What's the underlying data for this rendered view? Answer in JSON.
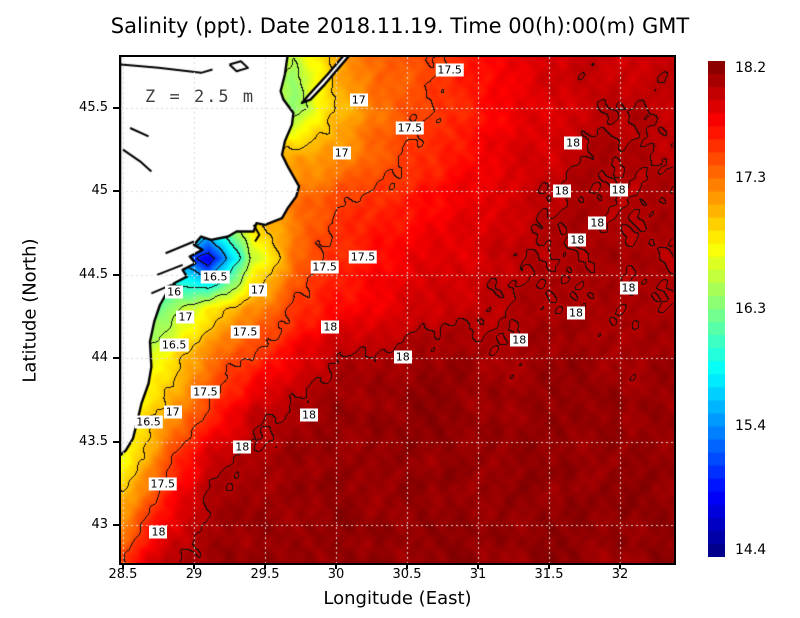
{
  "title": "Salinity (ppt). Date 2018.11.19. Time 00(h):00(m) GMT",
  "annotation": "Z = 2.5 m",
  "x_axis": {
    "label": "Longitude (East)",
    "ticks": [
      28.5,
      29,
      29.5,
      30,
      30.5,
      31,
      31.5,
      32
    ],
    "tick_labels": [
      "28.5",
      "29",
      "29.5",
      "30",
      "30.5",
      "31",
      "31.5",
      "32"
    ]
  },
  "y_axis": {
    "label": "Latitude (North)",
    "ticks": [
      45.5,
      45,
      44.5,
      44,
      43.5,
      43
    ],
    "tick_labels": [
      "45.5",
      "45",
      "44.5",
      "44",
      "43.5",
      "43"
    ]
  },
  "colorbar": {
    "min": 14.4,
    "max": 18.2,
    "ticks": [
      18.2,
      17.3,
      16.3,
      15.4,
      14.4
    ],
    "tick_labels": [
      "18.2",
      "17.3",
      "16.3",
      "15.4",
      "14.4"
    ],
    "steps": 38,
    "colormap": "jet"
  },
  "chart_data": {
    "type": "heatmap",
    "quantity": "salinity",
    "units": "ppt",
    "lon_range": [
      28.486,
      32.38
    ],
    "lat_range": [
      42.775,
      45.805
    ],
    "grid_lons": [
      28.5,
      28.8,
      29.1,
      29.4,
      29.7,
      30.0,
      30.3,
      30.6,
      30.9,
      31.2,
      31.5,
      31.8,
      32.1,
      32.4
    ],
    "grid_lats": [
      45.8,
      45.5,
      45.2,
      44.9,
      44.6,
      44.3,
      44.0,
      43.7,
      43.4,
      43.1,
      42.8
    ],
    "salinity": [
      [
        17.0,
        17.0,
        17.0,
        16.9,
        16.5,
        17.1,
        17.35,
        17.45,
        17.6,
        17.8,
        17.9,
        17.95,
        17.9,
        17.95
      ],
      [
        17.0,
        17.0,
        17.0,
        16.9,
        16.3,
        17.0,
        17.3,
        17.45,
        17.6,
        17.75,
        17.85,
        17.95,
        18.0,
        17.95
      ],
      [
        17.0,
        17.0,
        17.0,
        17.0,
        17.1,
        17.2,
        17.4,
        17.55,
        17.7,
        17.85,
        17.9,
        18.05,
        18.0,
        18.0
      ],
      [
        16.6,
        16.6,
        16.7,
        17.0,
        17.3,
        17.5,
        17.6,
        17.7,
        17.8,
        17.9,
        18.0,
        18.05,
        18.0,
        18.05
      ],
      [
        16.2,
        15.9,
        14.7,
        16.5,
        17.3,
        17.55,
        17.7,
        17.8,
        17.85,
        17.95,
        18.0,
        18.05,
        18.05,
        18.0
      ],
      [
        16.0,
        16.3,
        16.8,
        17.2,
        17.5,
        17.7,
        17.8,
        17.9,
        17.95,
        18.0,
        18.05,
        18.05,
        18.0,
        18.05
      ],
      [
        16.4,
        16.8,
        17.3,
        17.5,
        17.8,
        18.0,
        18.05,
        18.1,
        18.1,
        18.05,
        18.1,
        18.1,
        18.05,
        18.1
      ],
      [
        16.6,
        17.1,
        17.5,
        17.9,
        18.05,
        18.1,
        18.1,
        18.15,
        18.1,
        18.1,
        18.1,
        18.15,
        18.1,
        18.1
      ],
      [
        16.7,
        17.4,
        17.9,
        18.05,
        18.1,
        18.1,
        18.15,
        18.1,
        18.15,
        18.1,
        18.15,
        18.1,
        18.1,
        18.15
      ],
      [
        17.1,
        17.7,
        18.05,
        18.1,
        18.1,
        18.15,
        18.1,
        18.15,
        18.1,
        18.15,
        18.1,
        18.15,
        18.15,
        18.1
      ],
      [
        17.5,
        18.0,
        18.1,
        18.1,
        18.15,
        18.1,
        18.15,
        18.1,
        18.15,
        18.1,
        18.15,
        18.1,
        18.1,
        18.15
      ]
    ],
    "contour_levels": [
      15.0,
      15.5,
      16.0,
      16.5,
      17.0,
      17.5,
      18.0
    ],
    "contour_labels": [
      {
        "v": "17.5",
        "lon": 30.8,
        "lat": 45.73
      },
      {
        "v": "17",
        "lon": 30.16,
        "lat": 45.55
      },
      {
        "v": "17.5",
        "lon": 30.52,
        "lat": 45.38
      },
      {
        "v": "17",
        "lon": 30.04,
        "lat": 45.23
      },
      {
        "v": "18",
        "lon": 31.67,
        "lat": 45.29
      },
      {
        "v": "18",
        "lon": 31.59,
        "lat": 45.0
      },
      {
        "v": "18",
        "lon": 31.99,
        "lat": 45.01
      },
      {
        "v": "18",
        "lon": 31.84,
        "lat": 44.81
      },
      {
        "v": "18",
        "lon": 31.7,
        "lat": 44.71
      },
      {
        "v": "17.5",
        "lon": 30.19,
        "lat": 44.61
      },
      {
        "v": "17.5",
        "lon": 29.92,
        "lat": 44.55
      },
      {
        "v": "16.5",
        "lon": 29.15,
        "lat": 44.49
      },
      {
        "v": "17",
        "lon": 29.45,
        "lat": 44.41
      },
      {
        "v": "16",
        "lon": 28.86,
        "lat": 44.4
      },
      {
        "v": "17",
        "lon": 28.94,
        "lat": 44.25
      },
      {
        "v": "17.5",
        "lon": 29.36,
        "lat": 44.16
      },
      {
        "v": "16.5",
        "lon": 28.86,
        "lat": 44.08
      },
      {
        "v": "18",
        "lon": 29.96,
        "lat": 44.19
      },
      {
        "v": "16.5",
        "lon": 28.68,
        "lat": 43.62
      },
      {
        "v": "17.5",
        "lon": 29.08,
        "lat": 43.8
      },
      {
        "v": "17",
        "lon": 28.85,
        "lat": 43.68
      },
      {
        "v": "18",
        "lon": 29.81,
        "lat": 43.66
      },
      {
        "v": "18",
        "lon": 30.47,
        "lat": 44.01
      },
      {
        "v": "18",
        "lon": 31.29,
        "lat": 44.11
      },
      {
        "v": "18",
        "lon": 31.69,
        "lat": 44.27
      },
      {
        "v": "18",
        "lon": 32.06,
        "lat": 44.42
      },
      {
        "v": "18",
        "lon": 29.34,
        "lat": 43.47
      },
      {
        "v": "17.5",
        "lon": 28.78,
        "lat": 43.25
      },
      {
        "v": "18",
        "lon": 28.75,
        "lat": 42.96
      }
    ],
    "land_polygons": [
      [
        [
          28.48,
          45.82
        ],
        [
          29.66,
          45.82
        ],
        [
          29.64,
          45.7
        ],
        [
          29.61,
          45.6
        ],
        [
          29.63,
          45.55
        ],
        [
          29.7,
          45.47
        ],
        [
          29.69,
          45.4
        ],
        [
          29.64,
          45.3
        ],
        [
          29.62,
          45.22
        ],
        [
          29.66,
          45.15
        ],
        [
          29.74,
          45.03
        ],
        [
          29.72,
          44.97
        ],
        [
          29.66,
          44.9
        ],
        [
          29.62,
          44.84
        ],
        [
          29.5,
          44.8
        ],
        [
          29.44,
          44.81
        ],
        [
          29.42,
          44.76
        ],
        [
          29.3,
          44.76
        ],
        [
          29.24,
          44.73
        ],
        [
          29.12,
          44.71
        ],
        [
          29.05,
          44.73
        ],
        [
          29.0,
          44.68
        ],
        [
          29.06,
          44.65
        ],
        [
          28.97,
          44.61
        ],
        [
          29.01,
          44.57
        ],
        [
          28.92,
          44.53
        ],
        [
          28.95,
          44.49
        ],
        [
          28.86,
          44.45
        ],
        [
          28.82,
          44.41
        ],
        [
          28.76,
          44.32
        ],
        [
          28.72,
          44.22
        ],
        [
          28.69,
          44.1
        ],
        [
          28.7,
          43.95
        ],
        [
          28.68,
          43.85
        ],
        [
          28.63,
          43.73
        ],
        [
          28.6,
          43.62
        ],
        [
          28.57,
          43.52
        ],
        [
          28.52,
          43.45
        ],
        [
          28.48,
          43.42
        ]
      ],
      [
        [
          30.06,
          45.82
        ],
        [
          29.94,
          45.7
        ],
        [
          29.8,
          45.57
        ],
        [
          29.76,
          45.53
        ],
        [
          29.82,
          45.55
        ],
        [
          29.92,
          45.64
        ],
        [
          30.02,
          45.74
        ],
        [
          30.1,
          45.82
        ]
      ]
    ],
    "inland_waters": [
      [
        [
          28.48,
          45.76
        ],
        [
          28.75,
          45.74
        ],
        [
          29.05,
          45.71
        ],
        [
          29.13,
          45.73
        ]
      ],
      [
        [
          29.25,
          45.76
        ],
        [
          29.33,
          45.78
        ],
        [
          29.38,
          45.74
        ],
        [
          29.3,
          45.72
        ],
        [
          29.25,
          45.76
        ]
      ],
      [
        [
          28.5,
          45.25
        ],
        [
          28.62,
          45.18
        ],
        [
          28.7,
          45.12
        ]
      ],
      [
        [
          28.55,
          45.38
        ],
        [
          28.68,
          45.33
        ]
      ],
      [
        [
          29.42,
          44.8
        ],
        [
          29.46,
          44.74
        ],
        [
          29.43,
          44.7
        ]
      ],
      [
        [
          29.0,
          44.7
        ],
        [
          28.8,
          44.63
        ]
      ],
      [
        [
          28.92,
          44.56
        ],
        [
          28.74,
          44.5
        ]
      ],
      [
        [
          28.84,
          44.44
        ],
        [
          28.7,
          44.39
        ]
      ]
    ],
    "grid_lines_deg": 0.5,
    "land_color": "#ffffff",
    "coast_color": "#000000",
    "grid_dot_color": "#dcdcdc"
  }
}
